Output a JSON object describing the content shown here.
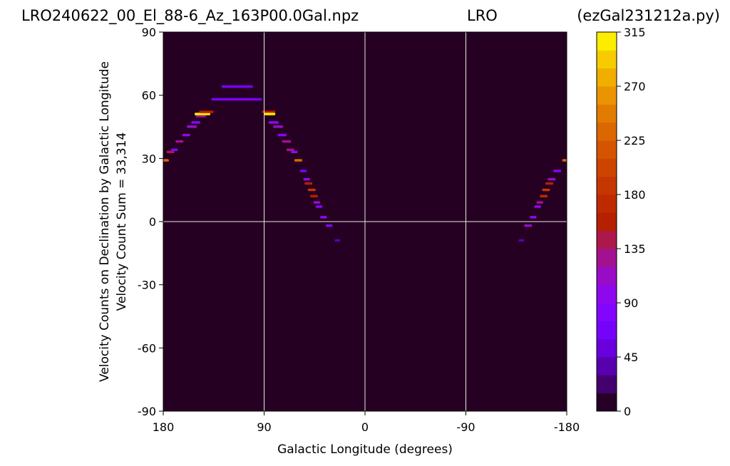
{
  "header": {
    "left": "LRO240622_00_El_88-6_Az_163P00.0Gal.npz",
    "center": "LRO",
    "right": "(ezGal231212a.py)"
  },
  "chart_data": {
    "type": "heatmap",
    "xlabel": "Galactic Longitude (degrees)",
    "ylabel_line1": "Velocity Counts on Declination by Galactic Longitude",
    "ylabel_line2": "Velocity Count Sum = 33,314",
    "xlim": [
      180,
      -180
    ],
    "ylim": [
      -90,
      90
    ],
    "xticks": [
      180,
      90,
      0,
      -90,
      -180
    ],
    "yticks": [
      90,
      60,
      30,
      0,
      -30,
      -60,
      -90
    ],
    "grid": true,
    "colormap": "gnuplot",
    "background_color": "#260022",
    "colorbar": {
      "min": 0,
      "max": 315,
      "ticks": [
        0,
        45,
        90,
        135,
        180,
        225,
        270,
        315
      ]
    },
    "cells": [
      {
        "x1": 180,
        "x2": 175,
        "y": 29,
        "v": 230
      },
      {
        "x1": 177,
        "x2": 170,
        "y": 33,
        "v": 140
      },
      {
        "x1": 173,
        "x2": 167,
        "y": 34,
        "v": 80
      },
      {
        "x1": 169,
        "x2": 162,
        "y": 38,
        "v": 120
      },
      {
        "x1": 163,
        "x2": 156,
        "y": 41,
        "v": 90
      },
      {
        "x1": 159,
        "x2": 150,
        "y": 45,
        "v": 110
      },
      {
        "x1": 155,
        "x2": 147,
        "y": 47,
        "v": 80
      },
      {
        "x1": 151,
        "x2": 142,
        "y": 50,
        "v": 120
      },
      {
        "x1": 152,
        "x2": 138,
        "y": 51,
        "v": 300
      },
      {
        "x1": 148,
        "x2": 135,
        "y": 52,
        "v": 150
      },
      {
        "x1": 137,
        "x2": 92,
        "y": 58,
        "v": 60
      },
      {
        "x1": 128,
        "x2": 100,
        "y": 64,
        "v": 70
      },
      {
        "x1": 92,
        "x2": 80,
        "y": 52,
        "v": 150
      },
      {
        "x1": 90,
        "x2": 80,
        "y": 51,
        "v": 300
      },
      {
        "x1": 86,
        "x2": 77,
        "y": 47,
        "v": 90
      },
      {
        "x1": 82,
        "x2": 73,
        "y": 45,
        "v": 110
      },
      {
        "x1": 78,
        "x2": 70,
        "y": 41,
        "v": 80
      },
      {
        "x1": 74,
        "x2": 66,
        "y": 38,
        "v": 120
      },
      {
        "x1": 70,
        "x2": 63,
        "y": 34,
        "v": 130
      },
      {
        "x1": 66,
        "x2": 60,
        "y": 33,
        "v": 90
      },
      {
        "x1": 63,
        "x2": 56,
        "y": 29,
        "v": 230
      },
      {
        "x1": 58,
        "x2": 52,
        "y": 24,
        "v": 70
      },
      {
        "x1": 55,
        "x2": 49,
        "y": 20,
        "v": 100
      },
      {
        "x1": 54,
        "x2": 47,
        "y": 18,
        "v": 150
      },
      {
        "x1": 51,
        "x2": 44,
        "y": 15,
        "v": 180
      },
      {
        "x1": 49,
        "x2": 42,
        "y": 12,
        "v": 150
      },
      {
        "x1": 46,
        "x2": 40,
        "y": 9,
        "v": 110
      },
      {
        "x1": 44,
        "x2": 38,
        "y": 7,
        "v": 80
      },
      {
        "x1": 40,
        "x2": 34,
        "y": 2,
        "v": 90
      },
      {
        "x1": 35,
        "x2": 29,
        "y": -2,
        "v": 80
      },
      {
        "x1": 27,
        "x2": 22,
        "y": -9,
        "v": 40
      },
      {
        "x1": -137,
        "x2": -142,
        "y": -9,
        "v": 40
      },
      {
        "x1": -142,
        "x2": -149,
        "y": -2,
        "v": 110
      },
      {
        "x1": -147,
        "x2": -153,
        "y": 2,
        "v": 100
      },
      {
        "x1": -151,
        "x2": -157,
        "y": 7,
        "v": 90
      },
      {
        "x1": -153,
        "x2": -159,
        "y": 9,
        "v": 130
      },
      {
        "x1": -156,
        "x2": -163,
        "y": 12,
        "v": 170
      },
      {
        "x1": -158,
        "x2": -165,
        "y": 15,
        "v": 180
      },
      {
        "x1": -161,
        "x2": -168,
        "y": 18,
        "v": 150
      },
      {
        "x1": -163,
        "x2": -170,
        "y": 20,
        "v": 110
      },
      {
        "x1": -168,
        "x2": -175,
        "y": 24,
        "v": 80
      },
      {
        "x1": -176,
        "x2": -180,
        "y": 29,
        "v": 230
      }
    ]
  }
}
